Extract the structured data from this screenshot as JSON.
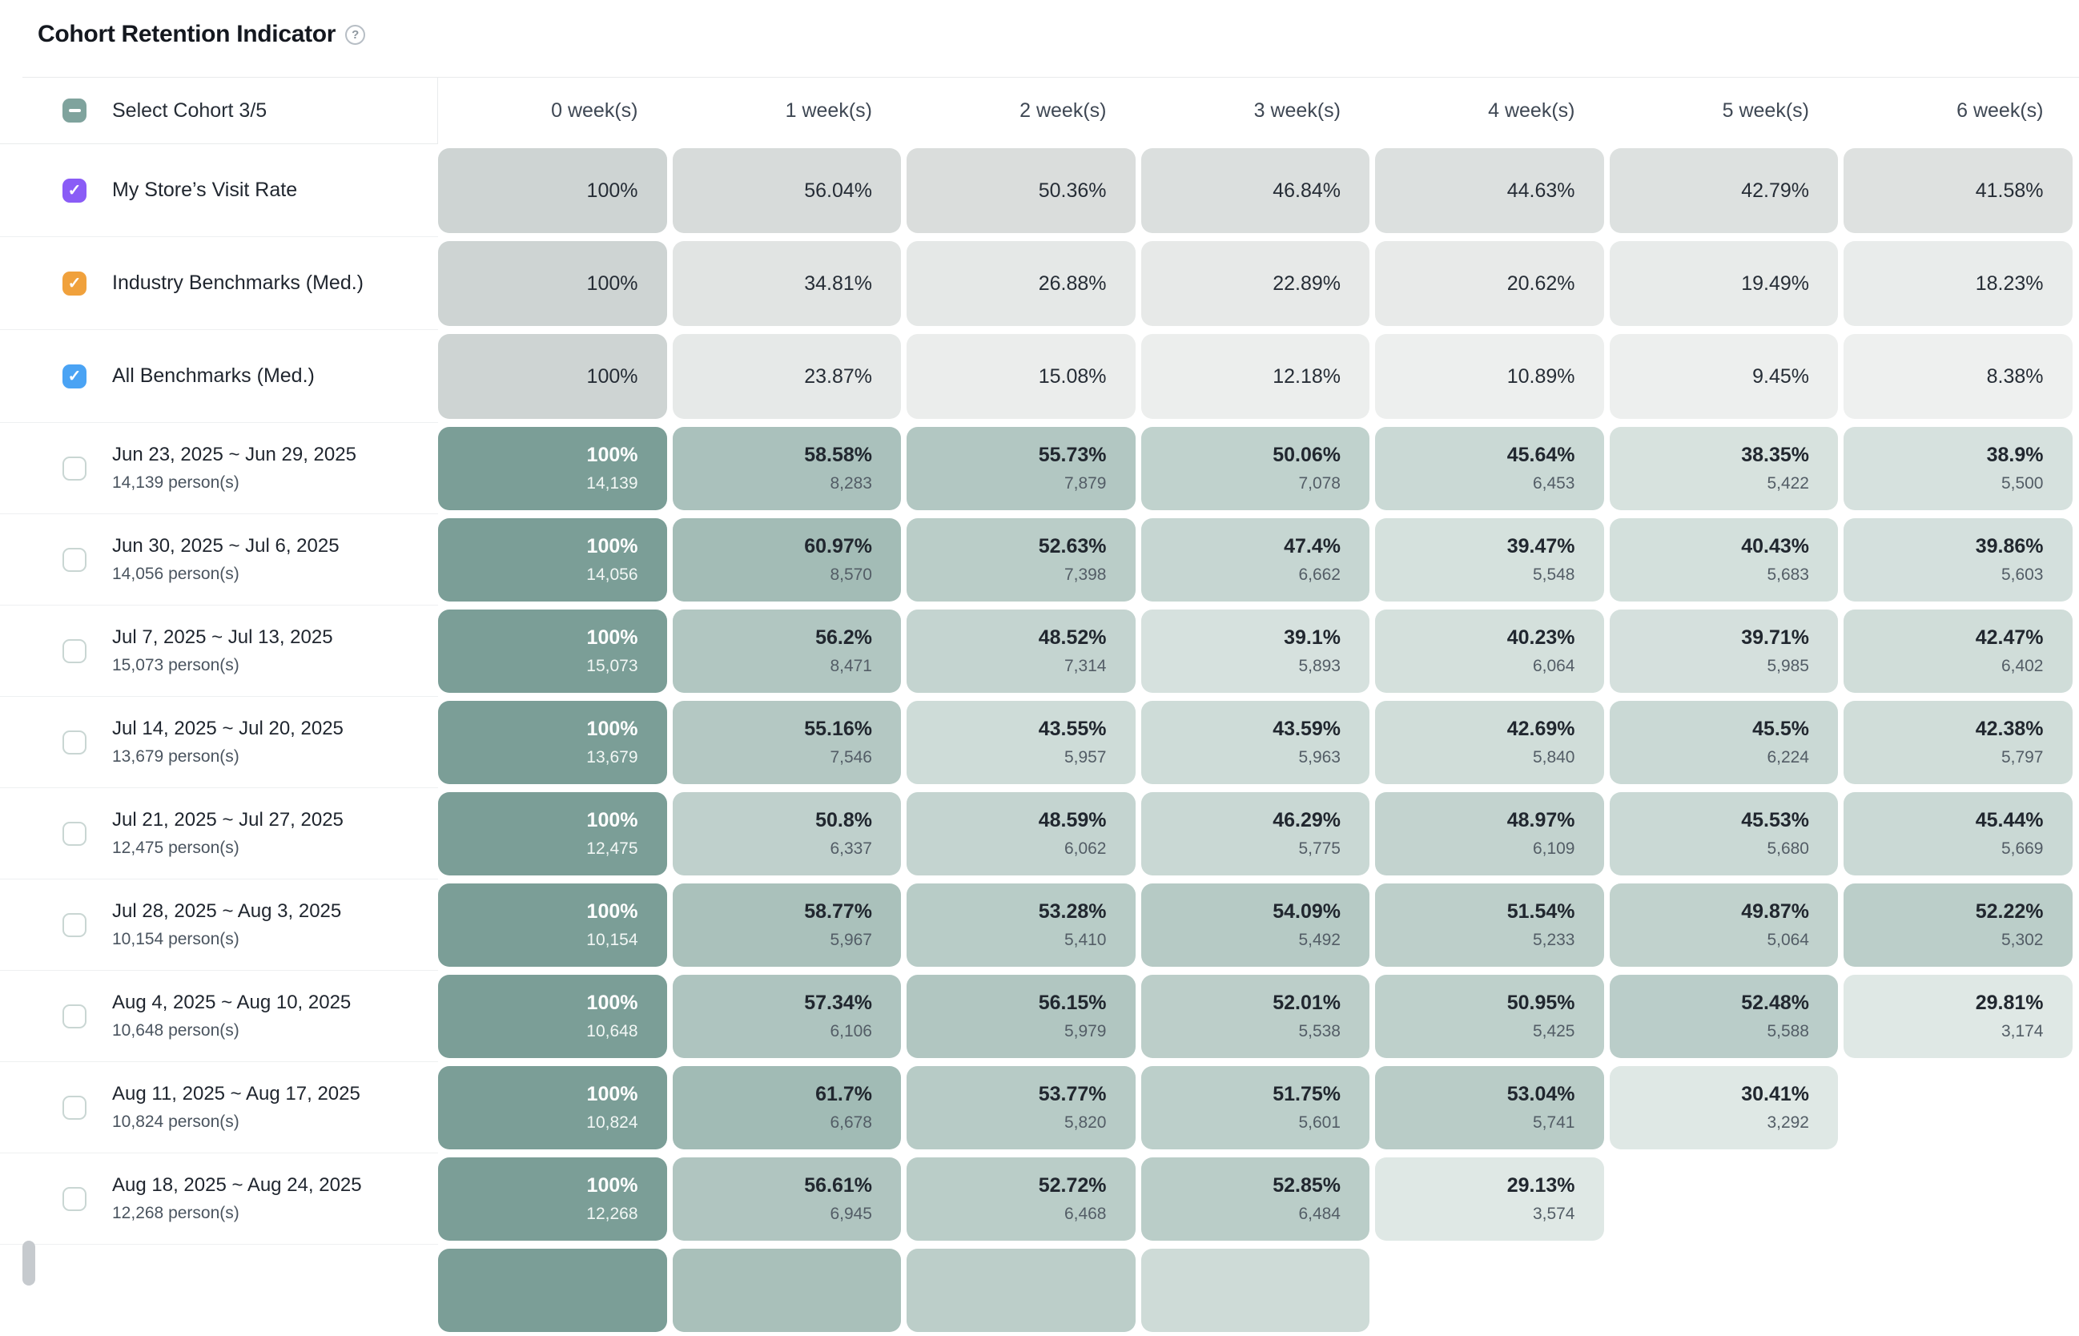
{
  "title": "Cohort Retention Indicator",
  "help_icon": "question-circle-icon",
  "header": {
    "select_label": "Select Cohort 3/5",
    "week_columns": [
      "0 week(s)",
      "1 week(s)",
      "2 week(s)",
      "3 week(s)",
      "4 week(s)",
      "5 week(s)",
      "6 week(s)"
    ]
  },
  "labels": {
    "persons_suffix": "person(s)"
  },
  "colors": {
    "checkbox_indeterminate": "#7fa39d",
    "checkbox_store": "#8a5cf6",
    "checkbox_industry": "#f0a13c",
    "checkbox_all": "#4aa3f4",
    "teal_full": "#7b9e97",
    "teal_high": "#a0bab4",
    "teal_low": "#dfe9e6",
    "grey_dark": "#ced4d3",
    "grey_light": "#eef0ef"
  },
  "chart_data": {
    "type": "heatmap",
    "title": "Cohort Retention Indicator",
    "columns": [
      "0 week(s)",
      "1 week(s)",
      "2 week(s)",
      "3 week(s)",
      "4 week(s)",
      "5 week(s)",
      "6 week(s)"
    ],
    "legend_position": "none",
    "benchmark_series": [
      {
        "name": "My Store’s Visit Rate",
        "checked": true,
        "checkbox_color": "#8a5cf6",
        "values": [
          100,
          56.04,
          50.36,
          46.84,
          44.63,
          42.79,
          41.58
        ]
      },
      {
        "name": "Industry Benchmarks (Med.)",
        "checked": true,
        "checkbox_color": "#f0a13c",
        "values": [
          100,
          34.81,
          26.88,
          22.89,
          20.62,
          19.49,
          18.23
        ]
      },
      {
        "name": "All Benchmarks (Med.)",
        "checked": true,
        "checkbox_color": "#4aa3f4",
        "values": [
          100,
          23.87,
          15.08,
          12.18,
          10.89,
          9.45,
          8.38
        ]
      }
    ],
    "cohorts": [
      {
        "range": "Jun 23, 2025 ~ Jun 29, 2025",
        "size": 14139,
        "checked": false,
        "retention_pct": [
          100,
          58.58,
          55.73,
          50.06,
          45.64,
          38.35,
          38.9
        ],
        "retained_count": [
          14139,
          8283,
          7879,
          7078,
          6453,
          5422,
          5500
        ]
      },
      {
        "range": "Jun 30, 2025 ~ Jul 6, 2025",
        "size": 14056,
        "checked": false,
        "retention_pct": [
          100,
          60.97,
          52.63,
          47.4,
          39.47,
          40.43,
          39.86
        ],
        "retained_count": [
          14056,
          8570,
          7398,
          6662,
          5548,
          5683,
          5603
        ]
      },
      {
        "range": "Jul 7, 2025 ~ Jul 13, 2025",
        "size": 15073,
        "checked": false,
        "retention_pct": [
          100,
          56.2,
          48.52,
          39.1,
          40.23,
          39.71,
          42.47
        ],
        "retained_count": [
          15073,
          8471,
          7314,
          5893,
          6064,
          5985,
          6402
        ]
      },
      {
        "range": "Jul 14, 2025 ~ Jul 20, 2025",
        "size": 13679,
        "checked": false,
        "retention_pct": [
          100,
          55.16,
          43.55,
          43.59,
          42.69,
          45.5,
          42.38
        ],
        "retained_count": [
          13679,
          7546,
          5957,
          5963,
          5840,
          6224,
          5797
        ]
      },
      {
        "range": "Jul 21, 2025 ~ Jul 27, 2025",
        "size": 12475,
        "checked": false,
        "retention_pct": [
          100,
          50.8,
          48.59,
          46.29,
          48.97,
          45.53,
          45.44
        ],
        "retained_count": [
          12475,
          6337,
          6062,
          5775,
          6109,
          5680,
          5669
        ]
      },
      {
        "range": "Jul 28, 2025 ~ Aug 3, 2025",
        "size": 10154,
        "checked": false,
        "retention_pct": [
          100,
          58.77,
          53.28,
          54.09,
          51.54,
          49.87,
          52.22
        ],
        "retained_count": [
          10154,
          5967,
          5410,
          5492,
          5233,
          5064,
          5302
        ]
      },
      {
        "range": "Aug 4, 2025 ~ Aug 10, 2025",
        "size": 10648,
        "checked": false,
        "retention_pct": [
          100,
          57.34,
          56.15,
          52.01,
          50.95,
          52.48,
          29.81
        ],
        "retained_count": [
          10648,
          6106,
          5979,
          5538,
          5425,
          5588,
          3174
        ]
      },
      {
        "range": "Aug 11, 2025 ~ Aug 17, 2025",
        "size": 10824,
        "checked": false,
        "retention_pct": [
          100,
          61.7,
          53.77,
          51.75,
          53.04,
          30.41
        ],
        "retained_count": [
          10824,
          6678,
          5820,
          5601,
          5741,
          3292
        ]
      },
      {
        "range": "Aug 18, 2025 ~ Aug 24, 2025",
        "size": 12268,
        "checked": false,
        "retention_pct": [
          100,
          56.61,
          52.72,
          52.85,
          29.13
        ],
        "retained_count": [
          12268,
          6945,
          6468,
          6484,
          3574
        ]
      }
    ],
    "partial_next_row": {
      "visible_cells": 4,
      "cell_colors": [
        "#7b9e97",
        "#a9c0ba",
        "#bccec9",
        "#cedbd7"
      ]
    }
  }
}
